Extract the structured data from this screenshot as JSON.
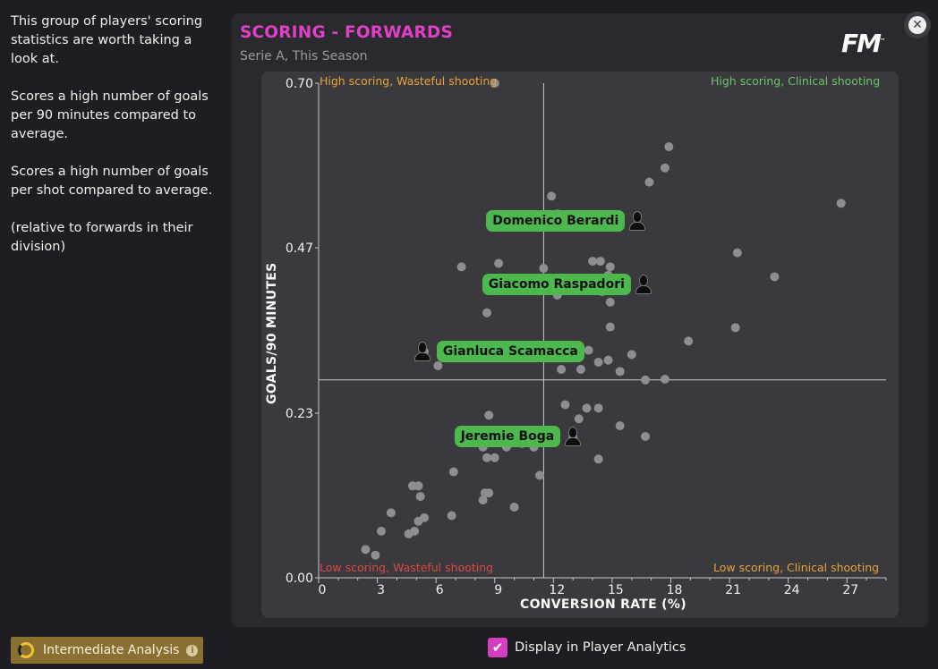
{
  "sidebar": {
    "para1": "This group of players' scoring statistics are worth taking a look at.",
    "para2": "Scores a high number of goals per 90 minutes compared to average.",
    "para3": "Scores a high number of goals per shot compared to average.",
    "para4": "(relative to forwards in their division)"
  },
  "header": {
    "title": "SCORING - FORWARDS",
    "subtitle": "Serie A, This Season",
    "logo_text": "FM",
    "logo_tm": "™",
    "close_symbol": "✕"
  },
  "quadrants": {
    "top_left": "High scoring, Wasteful shooting",
    "top_right": "High scoring, Clinical shooting",
    "bottom_left": "Low scoring, Wasteful shooting",
    "bottom_right": "Low scoring, Clinical shooting"
  },
  "chart_data": {
    "type": "scatter",
    "xlabel": "CONVERSION RATE (%)",
    "ylabel": "GOALS/90 MINUTES",
    "xlim": [
      0,
      29
    ],
    "ylim": [
      0,
      0.7
    ],
    "x_ticks": [
      0,
      3,
      6,
      9,
      12,
      15,
      18,
      21,
      24,
      27
    ],
    "y_ticks": [
      {
        "value": 0.0,
        "label": "0.00"
      },
      {
        "value": 0.233,
        "label": "0.23"
      },
      {
        "value": 0.467,
        "label": "0.47"
      },
      {
        "value": 0.7,
        "label": "0.70"
      }
    ],
    "average": {
      "x": 11.5,
      "y": 0.28
    },
    "colors": {
      "points": "#8e8d90",
      "axes": "#c8c8c8",
      "highlight": "#4db84d"
    },
    "points": [
      [
        9.0,
        0.7
      ],
      [
        17.9,
        0.61
      ],
      [
        17.7,
        0.58
      ],
      [
        16.9,
        0.56
      ],
      [
        26.7,
        0.53
      ],
      [
        11.9,
        0.54
      ],
      [
        12.2,
        0.515
      ],
      [
        15.0,
        0.505
      ],
      [
        21.4,
        0.46
      ],
      [
        23.3,
        0.426
      ],
      [
        14.0,
        0.448
      ],
      [
        14.4,
        0.448
      ],
      [
        14.9,
        0.44
      ],
      [
        11.5,
        0.438
      ],
      [
        7.3,
        0.44
      ],
      [
        9.2,
        0.445
      ],
      [
        14.8,
        0.428
      ],
      [
        12.2,
        0.4
      ],
      [
        14.5,
        0.405
      ],
      [
        14.9,
        0.39
      ],
      [
        8.6,
        0.375
      ],
      [
        14.9,
        0.355
      ],
      [
        21.3,
        0.354
      ],
      [
        18.9,
        0.335
      ],
      [
        13.8,
        0.322
      ],
      [
        16.0,
        0.316
      ],
      [
        14.8,
        0.308
      ],
      [
        14.3,
        0.305
      ],
      [
        6.1,
        0.3
      ],
      [
        12.4,
        0.295
      ],
      [
        13.4,
        0.295
      ],
      [
        15.4,
        0.292
      ],
      [
        16.7,
        0.28
      ],
      [
        17.7,
        0.281
      ],
      [
        12.6,
        0.245
      ],
      [
        13.7,
        0.24
      ],
      [
        14.3,
        0.24
      ],
      [
        13.3,
        0.225
      ],
      [
        8.7,
        0.23
      ],
      [
        15.4,
        0.215
      ],
      [
        16.7,
        0.2
      ],
      [
        8.5,
        0.195
      ],
      [
        9.0,
        0.195
      ],
      [
        8.4,
        0.185
      ],
      [
        10.4,
        0.19
      ],
      [
        9.6,
        0.185
      ],
      [
        11.0,
        0.185
      ],
      [
        8.6,
        0.17
      ],
      [
        9.0,
        0.17
      ],
      [
        14.3,
        0.168
      ],
      [
        6.9,
        0.15
      ],
      [
        11.3,
        0.145
      ],
      [
        4.8,
        0.13
      ],
      [
        5.1,
        0.13
      ],
      [
        5.2,
        0.115
      ],
      [
        8.5,
        0.12
      ],
      [
        8.7,
        0.12
      ],
      [
        8.4,
        0.11
      ],
      [
        10.0,
        0.1
      ],
      [
        3.7,
        0.092
      ],
      [
        5.4,
        0.085
      ],
      [
        6.8,
        0.088
      ],
      [
        5.1,
        0.08
      ],
      [
        3.2,
        0.066
      ],
      [
        4.9,
        0.066
      ],
      [
        4.6,
        0.062
      ],
      [
        2.4,
        0.04
      ],
      [
        2.9,
        0.032
      ]
    ],
    "highlighted": [
      {
        "name": "Domenico Berardi",
        "x": 15.1,
        "y": 0.505,
        "label_side": "left",
        "face_x": 16.3
      },
      {
        "name": "Giacomo Raspadori",
        "x": 12.3,
        "y": 0.415,
        "label_side": "left",
        "face_x": 16.6
      },
      {
        "name": "Gianluca Scamacca",
        "x": 5.4,
        "y": 0.32,
        "label_side": "right",
        "face_x": 5.3
      },
      {
        "name": "Jeremie Boga",
        "x": 13.0,
        "y": 0.2,
        "label_side": "left",
        "face_x": 13.0
      }
    ]
  },
  "footer": {
    "analysis_level": "Intermediate Analysis",
    "info_symbol": "i",
    "display_label": "Display in Player Analytics",
    "display_checked": true,
    "check_symbol": "✔"
  }
}
